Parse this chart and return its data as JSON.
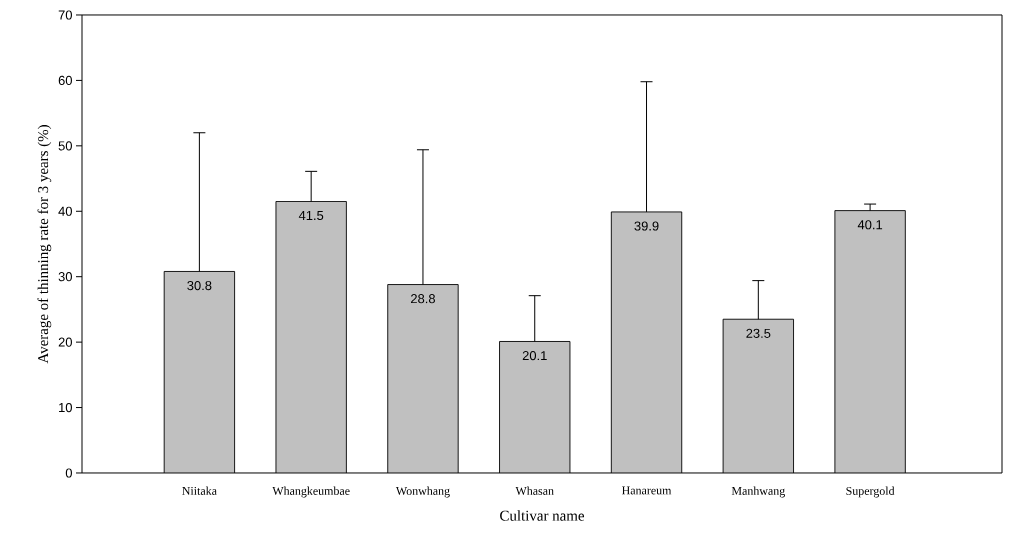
{
  "chart_data": {
    "type": "bar",
    "categories": [
      "Niitaka",
      "Whangkeumbae",
      "Wonwhang",
      "Whasan",
      "Hanareum",
      "Manhwang",
      "Supergold"
    ],
    "values": [
      30.8,
      41.5,
      28.8,
      20.1,
      39.9,
      23.5,
      40.1
    ],
    "errors": [
      [
        30.8,
        52.0
      ],
      [
        41.5,
        46.1
      ],
      [
        28.8,
        49.4
      ],
      [
        20.1,
        27.1
      ],
      [
        39.9,
        59.8
      ],
      [
        23.5,
        29.4
      ],
      [
        40.1,
        41.1
      ]
    ],
    "color": "#c0c0c0",
    "data_labels": true,
    "xlabel": "Cultivar name",
    "ylabel": "Average of thinning rate for 3 years (%)",
    "ylim": [
      0,
      70
    ],
    "yticks": [
      0,
      10,
      20,
      30,
      40,
      50,
      60,
      70
    ]
  }
}
